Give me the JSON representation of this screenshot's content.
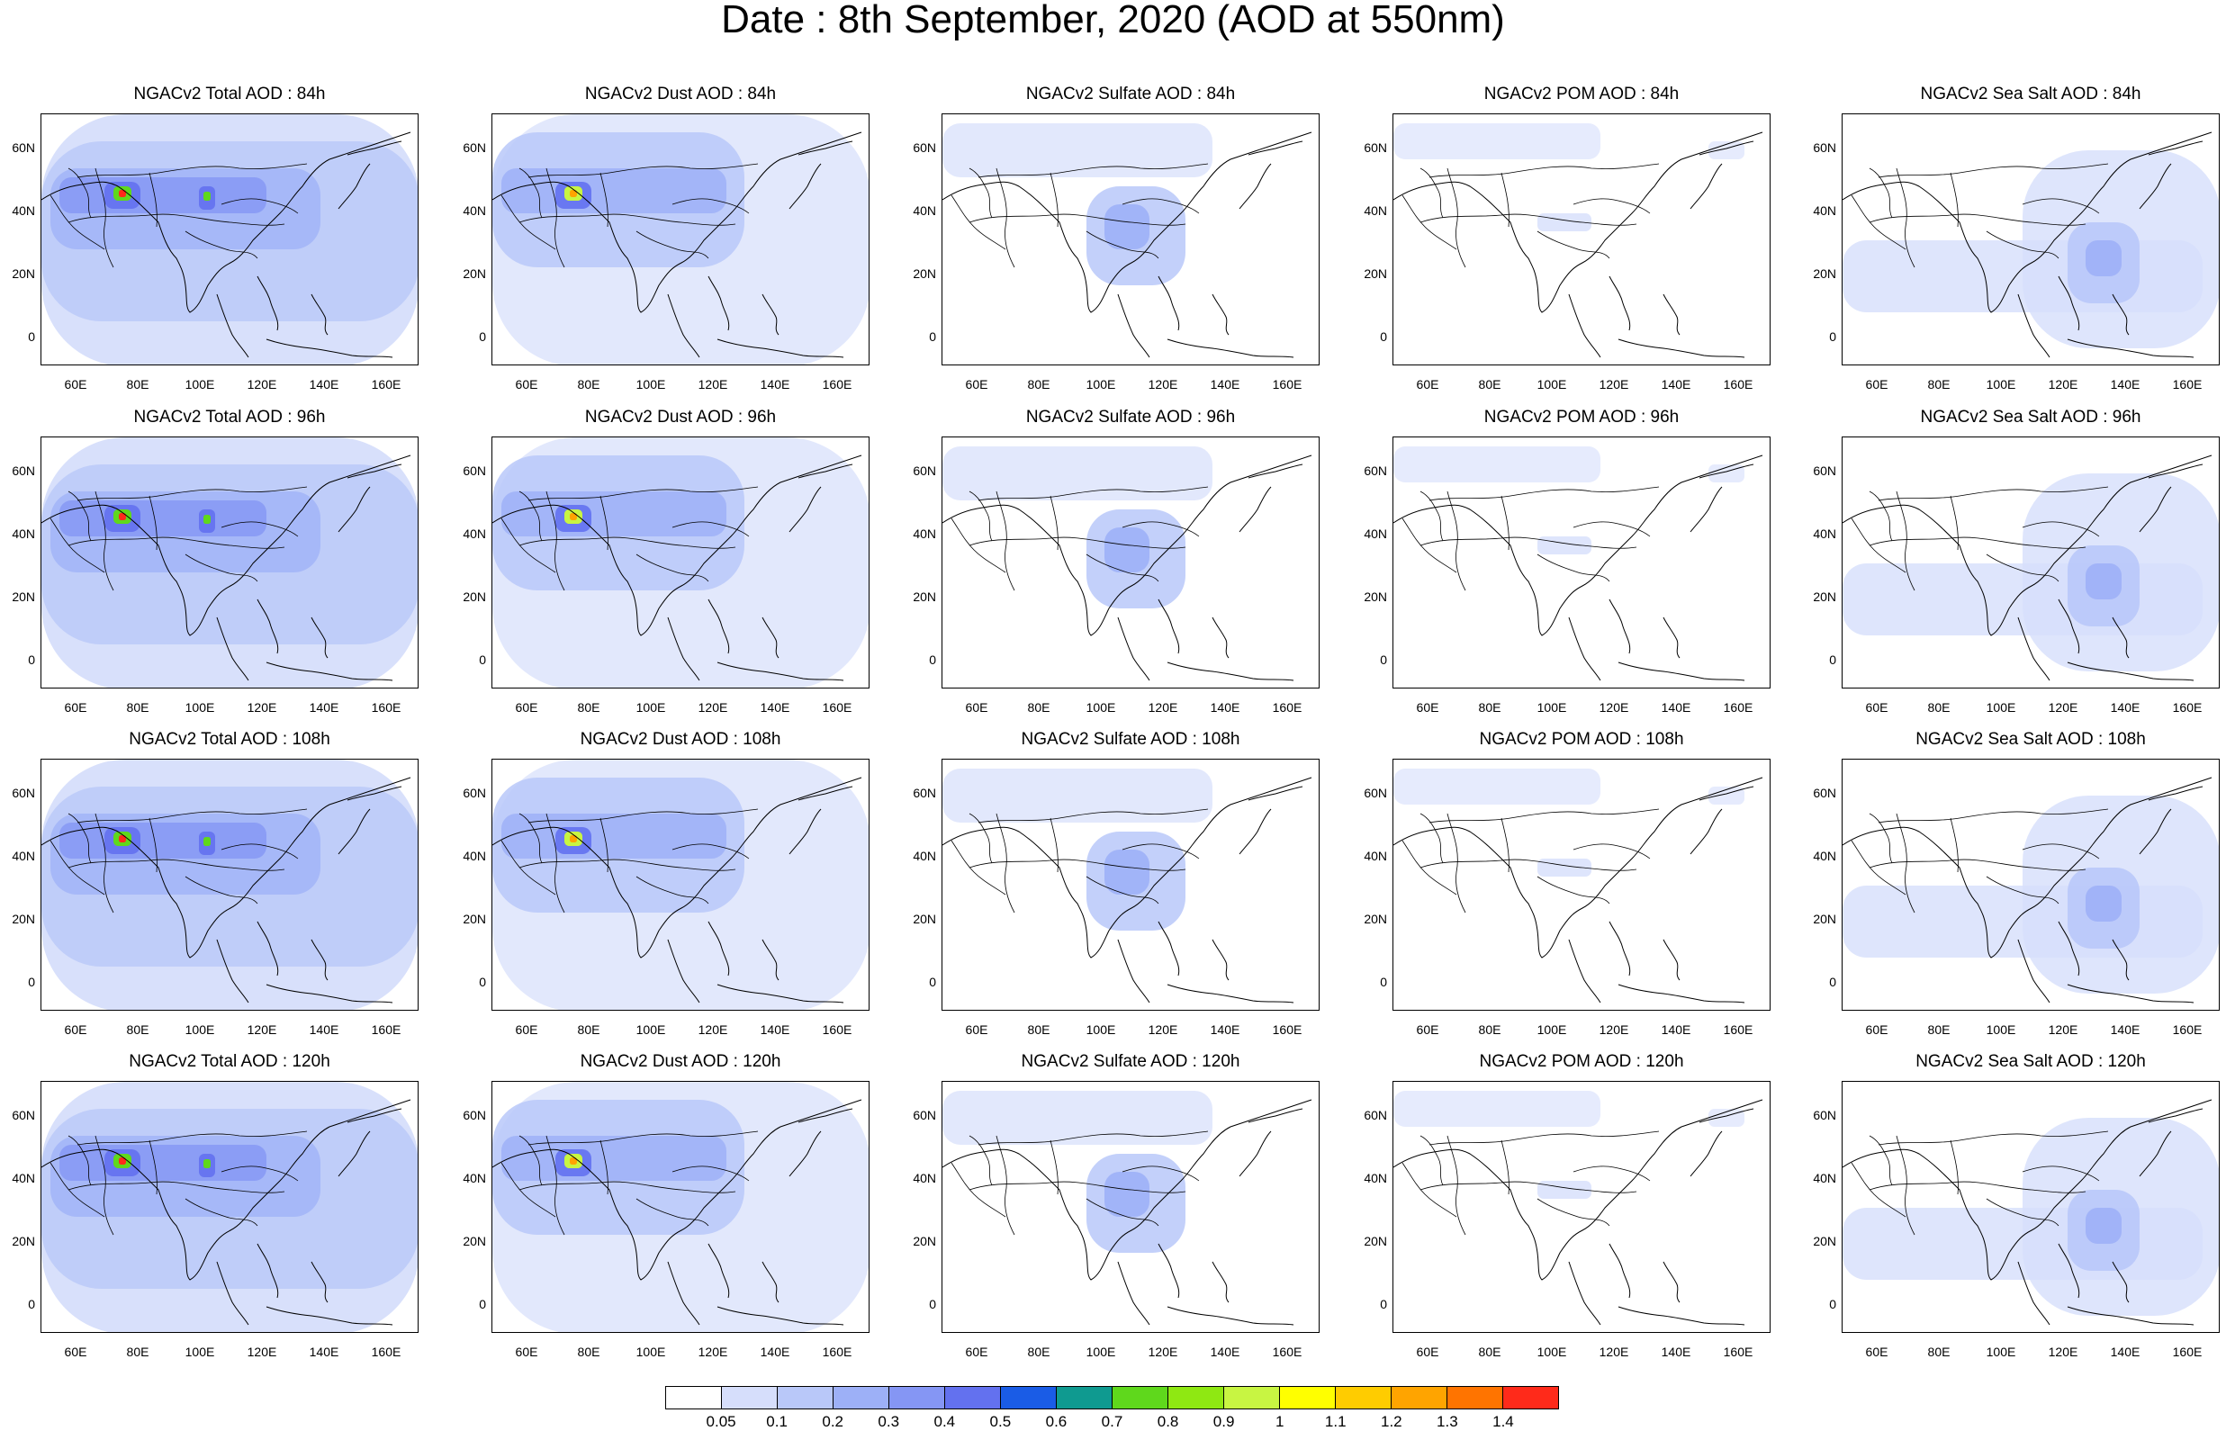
{
  "title": "Date : 8th September, 2020 (AOD at 550nm)",
  "panels": [
    [
      "NGACv2 Total AOD : 84h",
      "NGACv2 Dust AOD : 84h",
      "NGACv2 Sulfate AOD : 84h",
      "NGACv2 POM AOD : 84h",
      "NGACv2 Sea Salt AOD : 84h"
    ],
    [
      "NGACv2 Total AOD : 96h",
      "NGACv2 Dust AOD : 96h",
      "NGACv2 Sulfate AOD : 96h",
      "NGACv2 POM AOD : 96h",
      "NGACv2 Sea Salt AOD : 96h"
    ],
    [
      "NGACv2 Total AOD : 108h",
      "NGACv2 Dust AOD : 108h",
      "NGACv2 Sulfate AOD : 108h",
      "NGACv2 POM AOD : 108h",
      "NGACv2 Sea Salt AOD : 108h"
    ],
    [
      "NGACv2 Total AOD : 120h",
      "NGACv2 Dust AOD : 120h",
      "NGACv2 Sulfate AOD : 120h",
      "NGACv2 POM AOD : 120h",
      "NGACv2 Sea Salt  AOD : 120h"
    ]
  ],
  "lat_ticks": [
    "60N",
    "40N",
    "20N",
    "0"
  ],
  "lon_ticks": [
    "60E",
    "80E",
    "100E",
    "120E",
    "140E",
    "160E"
  ],
  "colorbar": {
    "colors": [
      "#ffffff",
      "#d6defb",
      "#b9c8f9",
      "#9db0f7",
      "#8596f4",
      "#6371ef",
      "#1a5ce6",
      "#0f9a90",
      "#5fd81c",
      "#8fe812",
      "#c8f542",
      "#ffff00",
      "#ffcc00",
      "#ffa400",
      "#ff7400",
      "#ff2a1a"
    ],
    "labels": [
      "0.05",
      "0.1",
      "0.2",
      "0.3",
      "0.4",
      "0.5",
      "0.6",
      "0.7",
      "0.8",
      "0.9",
      "1",
      "1.1",
      "1.2",
      "1.3",
      "1.4"
    ]
  }
}
